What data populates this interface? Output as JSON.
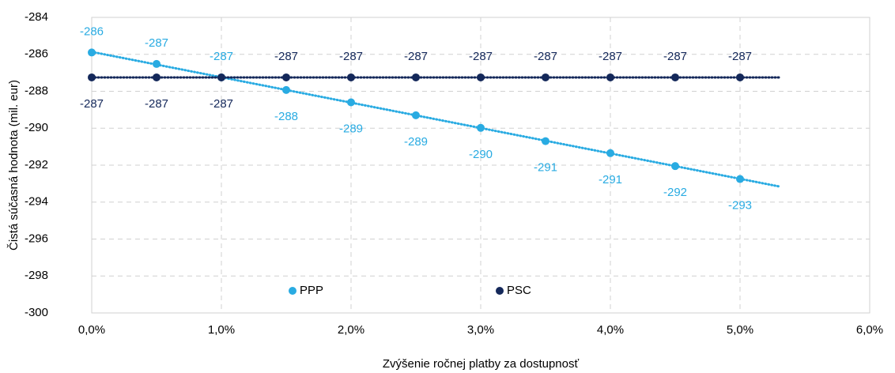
{
  "chart_data": {
    "type": "scatter",
    "x_label": "Zvýšenie ročnej platby za dostupnosť",
    "y_label": "Čistá súčasná hodnota (mil. eur)",
    "x": [
      0,
      0.5,
      1,
      1.5,
      2,
      2.5,
      3,
      3.5,
      4,
      4.5,
      5
    ],
    "series": [
      {
        "name": "PPP",
        "color": "#29abe2",
        "values": [
          -285.9,
          -286.52,
          -287.25,
          -287.93,
          -288.6,
          -289.3,
          -289.98,
          -290.7,
          -291.35,
          -292.05,
          -292.75
        ],
        "value_labels": [
          "-286",
          "-287",
          "-287",
          "-288",
          "-289",
          "-289",
          "-290",
          "-291",
          "-291",
          "-292",
          "-293"
        ]
      },
      {
        "name": "PSC",
        "color": "#14285a",
        "values": [
          -287.25,
          -287.25,
          -287.25,
          -287.25,
          -287.25,
          -287.25,
          -287.25,
          -287.25,
          -287.25,
          -287.25,
          -287.25
        ],
        "value_labels": [
          "-287",
          "-287",
          "-287",
          "-287",
          "-287",
          "-287",
          "-287",
          "-287",
          "-287",
          "-287",
          "-287"
        ]
      }
    ],
    "xlim": [
      0,
      6
    ],
    "xticks": [
      {
        "value": 0,
        "label": "0,0%"
      },
      {
        "value": 1,
        "label": "1,0%"
      },
      {
        "value": 2,
        "label": "2,0%"
      },
      {
        "value": 3,
        "label": "3,0%"
      },
      {
        "value": 4,
        "label": "4,0%"
      },
      {
        "value": 5,
        "label": "5,0%"
      },
      {
        "value": 6,
        "label": "6,0%"
      }
    ],
    "ylim": [
      -300,
      -284
    ],
    "yticks": [
      -300,
      -298,
      -296,
      -294,
      -292,
      -290,
      -288,
      -286,
      -284
    ],
    "grid": true,
    "legend": "bottom",
    "trendline": {
      "style": "dotted",
      "forward": 0.3
    }
  }
}
